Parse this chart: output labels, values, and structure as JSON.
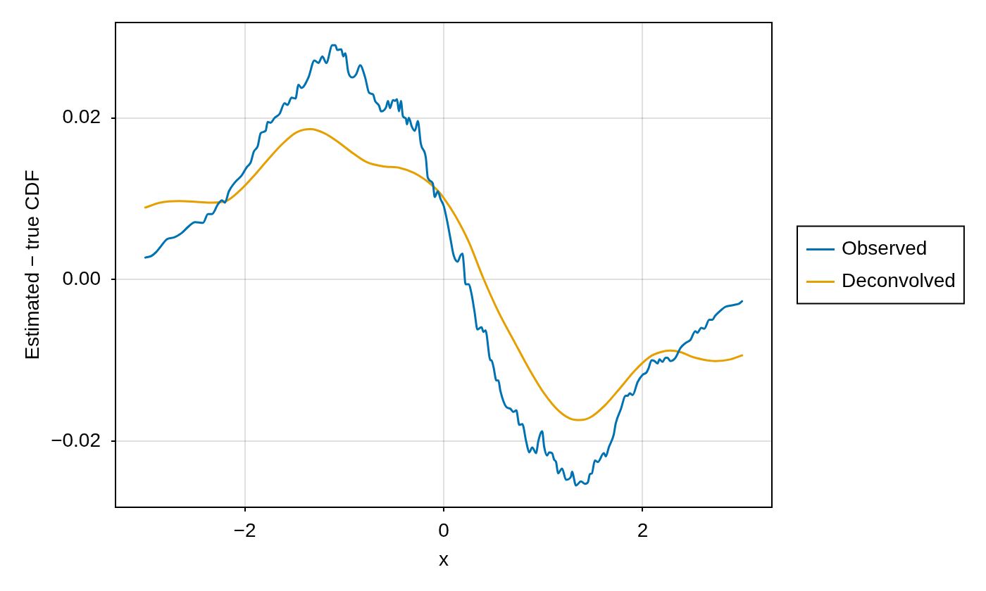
{
  "chart_data": {
    "type": "line",
    "xlabel": "x",
    "ylabel": "Estimated − true CDF",
    "xlim": [
      -3.3,
      3.3
    ],
    "ylim": [
      -0.0282,
      0.0318
    ],
    "xticks": [
      {
        "value": -2,
        "label": "−2"
      },
      0,
      2
    ],
    "yticks": [
      {
        "value": -0.02,
        "label": "−0.02"
      },
      {
        "value": 0,
        "label": "0.00"
      },
      {
        "value": 0.02,
        "label": "0.02"
      }
    ],
    "grid": true,
    "legend": "right",
    "series": [
      {
        "name": "Observed",
        "color": "#0072b2",
        "x": [
          -3.0,
          -2.94,
          -2.89,
          -2.85,
          -2.78,
          -2.71,
          -2.63,
          -2.57,
          -2.5,
          -2.42,
          -2.37,
          -2.33,
          -2.27,
          -2.23,
          -2.2,
          -2.16,
          -2.1,
          -2.03,
          -1.98,
          -1.94,
          -1.91,
          -1.87,
          -1.84,
          -1.79,
          -1.77,
          -1.74,
          -1.7,
          -1.65,
          -1.6,
          -1.57,
          -1.53,
          -1.49,
          -1.46,
          -1.43,
          -1.36,
          -1.3,
          -1.26,
          -1.22,
          -1.18,
          -1.12,
          -1.09,
          -1.07,
          -1.03,
          -1.01,
          -0.99,
          -0.96,
          -0.92,
          -0.88,
          -0.84,
          -0.79,
          -0.75,
          -0.71,
          -0.69,
          -0.65,
          -0.63,
          -0.58,
          -0.56,
          -0.54,
          -0.51,
          -0.49,
          -0.47,
          -0.45,
          -0.43,
          -0.41,
          -0.38,
          -0.37,
          -0.35,
          -0.32,
          -0.29,
          -0.26,
          -0.23,
          -0.18,
          -0.16,
          -0.11,
          -0.09,
          -0.06,
          -0.03,
          0.0,
          0.04,
          0.07,
          0.1,
          0.14,
          0.17,
          0.19,
          0.2,
          0.22,
          0.25,
          0.28,
          0.31,
          0.34,
          0.38,
          0.4,
          0.42,
          0.47,
          0.48,
          0.5,
          0.53,
          0.55,
          0.57,
          0.63,
          0.67,
          0.7,
          0.73,
          0.76,
          0.79,
          0.83,
          0.86,
          0.89,
          0.93,
          0.95,
          0.99,
          1.01,
          1.04,
          1.06,
          1.09,
          1.11,
          1.13,
          1.15,
          1.19,
          1.23,
          1.28,
          1.29,
          1.33,
          1.38,
          1.42,
          1.45,
          1.47,
          1.49,
          1.52,
          1.55,
          1.61,
          1.63,
          1.66,
          1.71,
          1.73,
          1.78,
          1.83,
          1.85,
          1.87,
          1.9,
          1.95,
          2.0,
          2.04,
          2.06,
          2.09,
          2.12,
          2.15,
          2.17,
          2.2,
          2.23,
          2.25,
          2.28,
          2.33,
          2.38,
          2.4,
          2.44,
          2.48,
          2.53,
          2.55,
          2.59,
          2.62,
          2.67,
          2.7,
          2.73,
          2.78,
          2.83,
          2.9,
          2.94,
          2.97,
          3.0
        ],
        "values": [
          0.0027,
          0.0029,
          0.0034,
          0.004,
          0.005,
          0.0052,
          0.0058,
          0.0065,
          0.0071,
          0.007,
          0.0081,
          0.0081,
          0.0093,
          0.0098,
          0.0095,
          0.0109,
          0.012,
          0.0129,
          0.0139,
          0.0145,
          0.0158,
          0.0165,
          0.0181,
          0.0184,
          0.0195,
          0.0194,
          0.02,
          0.0205,
          0.0218,
          0.0216,
          0.0225,
          0.0224,
          0.0241,
          0.0237,
          0.025,
          0.0271,
          0.0268,
          0.0276,
          0.0268,
          0.029,
          0.029,
          0.0284,
          0.0285,
          0.0276,
          0.028,
          0.0257,
          0.025,
          0.0254,
          0.0265,
          0.025,
          0.0231,
          0.0229,
          0.0221,
          0.0215,
          0.0208,
          0.0213,
          0.0221,
          0.0212,
          0.0222,
          0.0221,
          0.0223,
          0.0208,
          0.0221,
          0.0202,
          0.0199,
          0.0192,
          0.02,
          0.0189,
          0.0184,
          0.0196,
          0.0168,
          0.0151,
          0.0126,
          0.0119,
          0.0102,
          0.0109,
          0.0099,
          0.0091,
          0.0069,
          0.0049,
          0.003,
          0.0022,
          0.003,
          0.0032,
          0.0021,
          -0.0006,
          -0.0006,
          -0.0018,
          -0.004,
          -0.0062,
          -0.0059,
          -0.0065,
          -0.0063,
          -0.01,
          -0.01,
          -0.0108,
          -0.0125,
          -0.0125,
          -0.0138,
          -0.0158,
          -0.016,
          -0.0164,
          -0.0162,
          -0.018,
          -0.0179,
          -0.0201,
          -0.0214,
          -0.0208,
          -0.0215,
          -0.0201,
          -0.0188,
          -0.0207,
          -0.0218,
          -0.0214,
          -0.0215,
          -0.0223,
          -0.0226,
          -0.024,
          -0.0234,
          -0.0248,
          -0.0244,
          -0.0238,
          -0.0255,
          -0.025,
          -0.0253,
          -0.0251,
          -0.0241,
          -0.024,
          -0.0224,
          -0.0226,
          -0.0215,
          -0.0219,
          -0.0208,
          -0.0192,
          -0.0178,
          -0.0161,
          -0.0144,
          -0.0144,
          -0.0141,
          -0.0143,
          -0.0127,
          -0.0118,
          -0.0115,
          -0.011,
          -0.01,
          -0.0101,
          -0.0104,
          -0.0099,
          -0.0102,
          -0.0097,
          -0.0097,
          -0.0101,
          -0.0097,
          -0.0085,
          -0.0082,
          -0.0078,
          -0.0075,
          -0.0064,
          -0.0066,
          -0.006,
          -0.0061,
          -0.005,
          -0.005,
          -0.0045,
          -0.0039,
          -0.0034,
          -0.0032,
          -0.0031,
          -0.003,
          -0.0027
        ]
      },
      {
        "name": "Deconvolved",
        "color": "#e69f00",
        "x": [
          -3.0,
          -2.85,
          -2.66,
          -2.48,
          -2.33,
          -2.19,
          -2.05,
          -1.91,
          -1.77,
          -1.62,
          -1.48,
          -1.34,
          -1.2,
          -1.06,
          -0.91,
          -0.77,
          -0.61,
          -0.44,
          -0.3,
          -0.16,
          -0.06,
          0.01,
          0.12,
          0.25,
          0.4,
          0.55,
          0.71,
          0.86,
          1.01,
          1.16,
          1.29,
          1.37,
          1.47,
          1.62,
          1.77,
          1.92,
          2.07,
          2.18,
          2.28,
          2.38,
          2.53,
          2.73,
          2.88,
          3.0
        ],
        "values": [
          0.0089,
          0.0095,
          0.0097,
          0.0096,
          0.0095,
          0.0097,
          0.011,
          0.0128,
          0.0148,
          0.0168,
          0.0182,
          0.0186,
          0.0181,
          0.017,
          0.0156,
          0.0145,
          0.014,
          0.0138,
          0.0132,
          0.0121,
          0.011,
          0.0099,
          0.0078,
          0.0047,
          0.0001,
          -0.004,
          -0.0077,
          -0.0111,
          -0.0141,
          -0.0163,
          -0.0173,
          -0.0174,
          -0.0171,
          -0.0156,
          -0.0135,
          -0.0113,
          -0.0096,
          -0.009,
          -0.0088,
          -0.009,
          -0.0097,
          -0.0101,
          -0.0099,
          -0.0094
        ]
      }
    ]
  }
}
